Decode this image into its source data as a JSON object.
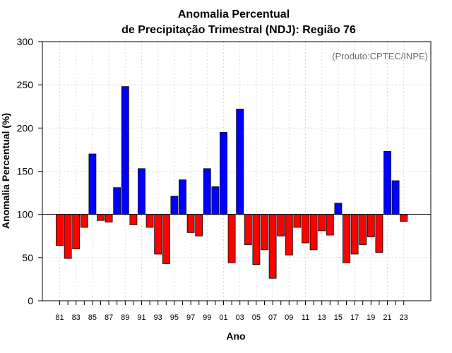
{
  "chart_data": {
    "type": "bar",
    "title": [
      "Anomalia Percentual",
      "de Precipitação Trimestral (NDJ): Região 76"
    ],
    "credit": "(Produto:CPTEC/INPE)",
    "xlabel": "Ano",
    "ylabel": "Anomalia Percentual (%)",
    "ylim": [
      0,
      300
    ],
    "yticks": [
      0,
      50,
      100,
      150,
      200,
      250,
      300
    ],
    "baseline": 100,
    "grid": true,
    "colors": {
      "above": "#0000ff",
      "below": "#ff0000",
      "edge": "#000000",
      "grid": "#d9d9d9"
    },
    "categories": [
      "81",
      "82",
      "83",
      "84",
      "85",
      "86",
      "87",
      "88",
      "89",
      "90",
      "91",
      "92",
      "93",
      "94",
      "95",
      "96",
      "97",
      "98",
      "99",
      "00",
      "01",
      "02",
      "03",
      "04",
      "05",
      "06",
      "07",
      "08",
      "09",
      "10",
      "11",
      "12",
      "13",
      "14",
      "15",
      "16",
      "17",
      "18",
      "19",
      "20",
      "21",
      "22",
      "23"
    ],
    "tick_labels": [
      "81",
      "83",
      "85",
      "87",
      "89",
      "91",
      "93",
      "95",
      "97",
      "99",
      "01",
      "03",
      "05",
      "07",
      "09",
      "11",
      "13",
      "15",
      "17",
      "19",
      "21",
      "23"
    ],
    "values": [
      64,
      49,
      60,
      85,
      170,
      93,
      91,
      131,
      248,
      88,
      153,
      85,
      54,
      43,
      121,
      140,
      79,
      75,
      153,
      132,
      195,
      44,
      222,
      65,
      42,
      59,
      26,
      75,
      53,
      85,
      67,
      59,
      81,
      76,
      113,
      44,
      54,
      65,
      74,
      56,
      173,
      139,
      92
    ]
  }
}
